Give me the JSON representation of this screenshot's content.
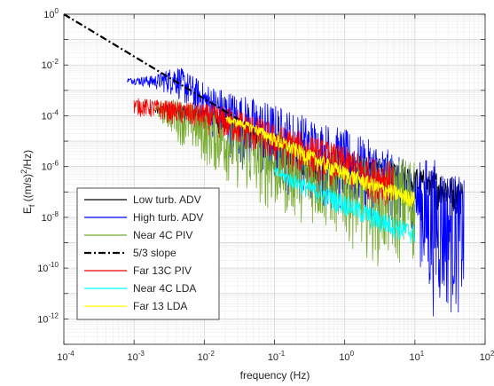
{
  "chart_data": {
    "type": "line",
    "x_scale": "log",
    "y_scale": "log",
    "xlim": [
      0.0001,
      100
    ],
    "ylim": [
      1e-13,
      1
    ],
    "grid": true,
    "xlabel": "frequency (Hz)",
    "ylabel": {
      "base": "E",
      "subscript": "f",
      "unit_open": " ((m/s)",
      "unit_exp": "2",
      "unit_close": "/Hz)"
    },
    "x_ticks": [
      {
        "value": 0.0001,
        "base": "10",
        "exp": "-4"
      },
      {
        "value": 0.001,
        "base": "10",
        "exp": "-3"
      },
      {
        "value": 0.01,
        "base": "10",
        "exp": "-2"
      },
      {
        "value": 0.1,
        "base": "10",
        "exp": "-1"
      },
      {
        "value": 1,
        "base": "10",
        "exp": "0"
      },
      {
        "value": 10,
        "base": "10",
        "exp": "1"
      },
      {
        "value": 100,
        "base": "10",
        "exp": "2"
      }
    ],
    "y_ticks": [
      {
        "value": 1,
        "base": "10",
        "exp": "0"
      },
      {
        "value": 0.01,
        "base": "10",
        "exp": "-2"
      },
      {
        "value": 0.0001,
        "base": "10",
        "exp": "-4"
      },
      {
        "value": 1e-06,
        "base": "10",
        "exp": "-6"
      },
      {
        "value": 1e-08,
        "base": "10",
        "exp": "-8"
      },
      {
        "value": 1e-10,
        "base": "10",
        "exp": "-10"
      },
      {
        "value": 1e-12,
        "base": "10",
        "exp": "-12"
      }
    ],
    "legend": {
      "placement": "lower-left",
      "entries": [
        {
          "name": "Low turb. ADV",
          "color": "#000000",
          "dash": "solid"
        },
        {
          "name": "High turb. ADV",
          "color": "#0000ff",
          "dash": "solid"
        },
        {
          "name": "Near 4C PIV",
          "color": "#77ac30",
          "dash": "solid"
        },
        {
          "name": "5/3 slope",
          "color": "#000000",
          "dash": "dashdot"
        },
        {
          "name": "Far 13C PIV",
          "color": "#ff0000",
          "dash": "solid"
        },
        {
          "name": "Near 4C LDA",
          "color": "#00ffff",
          "dash": "solid"
        },
        {
          "name": "Far 13 LDA",
          "color": "#ffff00",
          "dash": "solid"
        }
      ]
    },
    "series": [
      {
        "name": "Low turb. ADV",
        "color": "#000000",
        "width": 0.8,
        "x": [
          0.002,
          0.003,
          0.005,
          0.01,
          0.02,
          0.05,
          0.1,
          0.3,
          1,
          3,
          7,
          20,
          48
        ],
        "upper": [
          0.0002,
          0.0003,
          0.0003,
          0.0002,
          0.00015,
          5e-05,
          2e-05,
          6e-06,
          3e-06,
          2e-06,
          1e-06,
          7e-07,
          3e-07
        ],
        "lower": [
          0.0001,
          0.0001,
          5e-05,
          3e-05,
          1.5e-05,
          3e-06,
          1e-06,
          2e-07,
          1e-07,
          5e-08,
          3e-08,
          2e-08,
          1e-08
        ]
      },
      {
        "name": "High turb. ADV",
        "color": "#0000ff",
        "width": 0.8,
        "x": [
          0.0008,
          0.002,
          0.004,
          0.01,
          0.03,
          0.1,
          0.3,
          1,
          3,
          10,
          15,
          20,
          50
        ],
        "upper": [
          0.003,
          0.004,
          0.01,
          0.002,
          0.0008,
          0.0003,
          0.0001,
          3e-05,
          8e-06,
          1e-06,
          3e-06,
          2e-06,
          3e-07
        ],
        "lower": [
          0.002,
          0.001,
          0.0005,
          3e-05,
          1e-06,
          1e-07,
          3e-08,
          1e-08,
          5e-09,
          3e-09,
          1e-12,
          1e-12,
          1e-12
        ]
      },
      {
        "name": "Near 4C PIV",
        "color": "#77ac30",
        "width": 0.8,
        "x": [
          0.002,
          0.004,
          0.01,
          0.03,
          0.1,
          0.3,
          1,
          3,
          10
        ],
        "upper": [
          0.0003,
          0.0005,
          0.0002,
          0.0001,
          3e-05,
          1e-05,
          5e-06,
          2e-06,
          3e-06
        ],
        "lower": [
          0.0001,
          1e-05,
          1e-06,
          1e-07,
          1e-08,
          5e-09,
          1e-09,
          1e-10,
          1e-10
        ]
      },
      {
        "name": "Far 13C PIV",
        "color": "#ff0000",
        "width": 0.8,
        "x": [
          0.001,
          0.003,
          0.01,
          0.03,
          0.1,
          0.3,
          1,
          3,
          5
        ],
        "upper": [
          0.0005,
          0.0004,
          0.0003,
          0.0002,
          5e-05,
          2e-05,
          6e-06,
          2e-06,
          1.5e-06
        ],
        "lower": [
          0.0001,
          5e-05,
          2e-05,
          5e-06,
          1e-06,
          3e-07,
          1e-07,
          3e-08,
          2e-08
        ]
      },
      {
        "name": "Near 4C LDA",
        "color": "#00ffff",
        "width": 0.8,
        "x": [
          0.1,
          0.3,
          1,
          3,
          10
        ],
        "upper": [
          1e-06,
          3e-07,
          8e-08,
          2e-08,
          5e-09
        ],
        "lower": [
          3e-07,
          5e-08,
          1e-08,
          2e-09,
          7e-10
        ]
      },
      {
        "name": "Far 13 LDA",
        "color": "#ffff00",
        "width": 1.0,
        "x": [
          0.02,
          0.05,
          0.1,
          0.3,
          1,
          3,
          10
        ],
        "upper": [
          0.0001,
          5e-05,
          2e-05,
          5e-06,
          1e-06,
          3e-07,
          1e-07
        ],
        "lower": [
          5e-05,
          2e-05,
          5e-06,
          1e-06,
          2e-07,
          5e-08,
          2e-08
        ]
      },
      {
        "name": "5/3 slope",
        "color": "#000000",
        "width": 2.2,
        "dash": "dashdot",
        "x": [
          0.0001,
          0.03
        ],
        "y": [
          1,
          7.55e-05
        ]
      }
    ]
  }
}
